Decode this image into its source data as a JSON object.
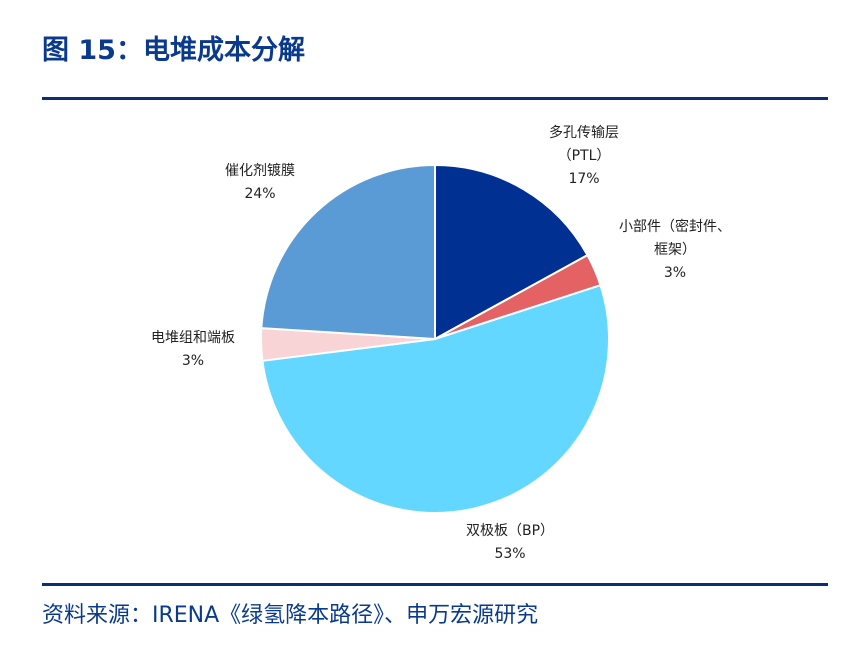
{
  "figure": {
    "title": "图 15：电堆成本分解",
    "source": "资料来源：IRENA《绿氢降本路径》、申万宏源研究"
  },
  "chart_data": {
    "type": "pie",
    "start_angle_deg": 0,
    "direction": "clockwise",
    "slices": [
      {
        "name": "多孔传输层",
        "label_lines": [
          "多孔传输层",
          "（PTL）"
        ],
        "value": 17,
        "value_label": "17%",
        "color": "#003192"
      },
      {
        "name": "小部件（密封件、框架）",
        "label_lines": [
          "小部件（密封件、",
          "框架）"
        ],
        "value": 3,
        "value_label": "3%",
        "color": "#e46164"
      },
      {
        "name": "双极板（BP）",
        "label_lines": [
          "双极板（BP）"
        ],
        "value": 53,
        "value_label": "53%",
        "color": "#63d7ff"
      },
      {
        "name": "电堆组和端板",
        "label_lines": [
          "电堆组和端板"
        ],
        "value": 3,
        "value_label": "3%",
        "color": "#f9d4d6"
      },
      {
        "name": "催化剂镀膜",
        "label_lines": [
          "催化剂镀膜"
        ],
        "value": 24,
        "value_label": "24%",
        "color": "#5b9bd5"
      }
    ]
  }
}
